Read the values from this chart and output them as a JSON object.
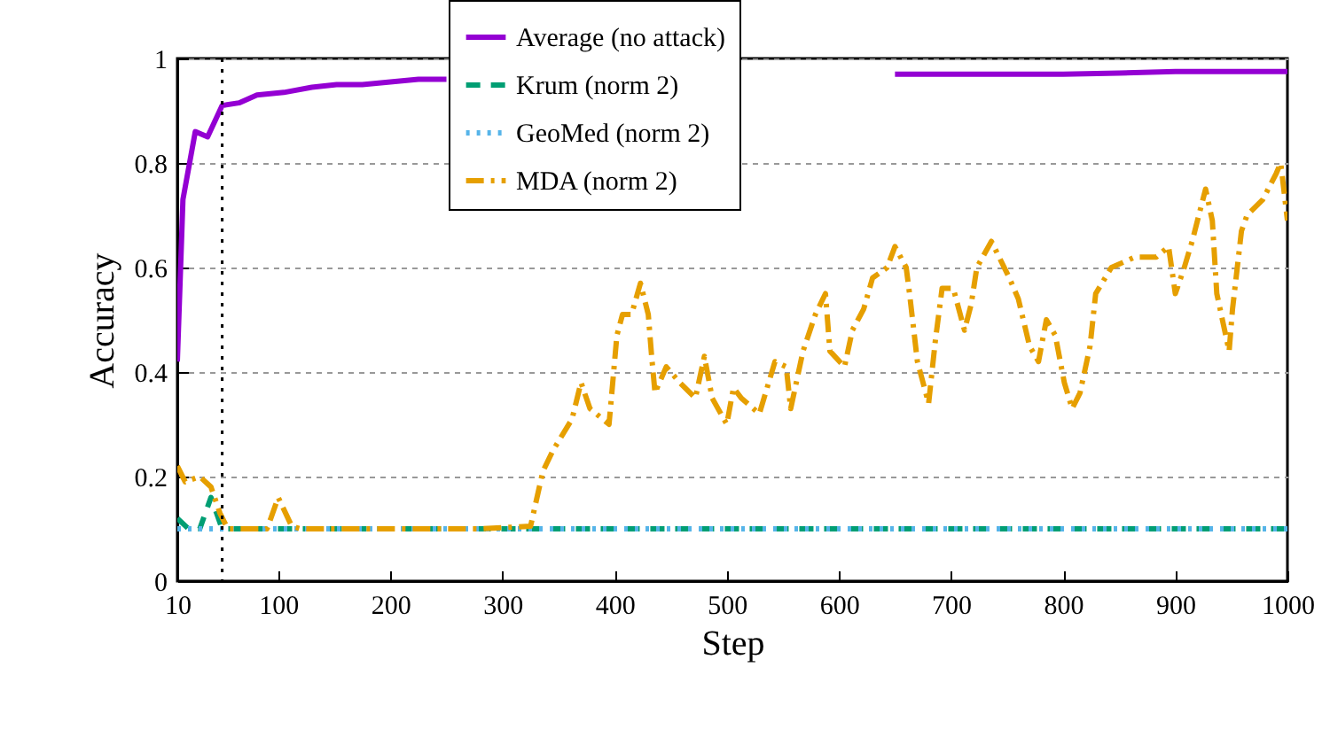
{
  "chart_data": {
    "type": "line",
    "xlabel": "Step",
    "ylabel": "Accuracy",
    "xlim": [
      10,
      1000
    ],
    "xticks": [
      10,
      100,
      200,
      300,
      400,
      500,
      600,
      700,
      800,
      900,
      1000
    ],
    "ylim": [
      0,
      1
    ],
    "yticks": [
      0,
      0.2,
      0.4,
      0.6,
      0.8,
      1
    ],
    "grid": "y",
    "legend": "top",
    "marker": "none",
    "ref_lines": [
      {
        "axis": "x",
        "value": 50,
        "color": "#000000",
        "line_style": "dotted"
      }
    ],
    "series": [
      {
        "name": "Average (no attack)",
        "color": "#9400d3",
        "line_style": "solid",
        "x": [
          10,
          15,
          26,
          37,
          50,
          65,
          81,
          105,
          130,
          152,
          175,
          200,
          225,
          250,
          400,
          650,
          700,
          750,
          800,
          850,
          900,
          950,
          1000
        ],
        "values": [
          0.42,
          0.73,
          0.86,
          0.85,
          0.91,
          0.915,
          0.93,
          0.935,
          0.945,
          0.95,
          0.95,
          0.955,
          0.96,
          0.96,
          null,
          0.97,
          0.97,
          0.97,
          0.97,
          0.972,
          0.975,
          0.975,
          0.975
        ]
      },
      {
        "name": "Krum (norm 2)",
        "color": "#009e73",
        "line_style": "dashed",
        "x": [
          10,
          20,
          30,
          40,
          50,
          1000
        ],
        "values": [
          0.12,
          0.1,
          0.1,
          0.16,
          0.1,
          0.1
        ]
      },
      {
        "name": "GeoMed (norm 2)",
        "color": "#56b4e9",
        "line_style": "dotted",
        "x": [
          10,
          1000
        ],
        "values": [
          0.1,
          0.1
        ]
      },
      {
        "name": "MDA (norm 2)",
        "color": "#e69f00",
        "line_style": "dashdot",
        "x": [
          10,
          17,
          30,
          40,
          48,
          55,
          70,
          90,
          100,
          112,
          120,
          200,
          280,
          325,
          336,
          345,
          362,
          370,
          378,
          395,
          402,
          407,
          415,
          423,
          430,
          433,
          436,
          446,
          458,
          472,
          480,
          487,
          500,
          506,
          513,
          529,
          543,
          553,
          557,
          568,
          579,
          588,
          592,
          605,
          612,
          622,
          630,
          643,
          650,
          660,
          663,
          670,
          680,
          686,
          692,
          702,
          712,
          718,
          723,
          736,
          752,
          760,
          770,
          778,
          785,
          793,
          801,
          808,
          815,
          824,
          829,
          843,
          864,
          883,
          894,
          900,
          908,
          915,
          927,
          933,
          937,
          948,
          951,
          959,
          964,
          978,
          990,
          994,
          1000
        ],
        "values": [
          0.22,
          0.19,
          0.2,
          0.18,
          0.13,
          0.1,
          0.1,
          0.1,
          0.16,
          0.105,
          0.1,
          0.1,
          0.1,
          0.105,
          0.21,
          0.25,
          0.31,
          0.38,
          0.33,
          0.3,
          0.47,
          0.51,
          0.51,
          0.57,
          0.51,
          0.43,
          0.36,
          0.41,
          0.38,
          0.35,
          0.43,
          0.35,
          0.3,
          0.37,
          0.35,
          0.32,
          0.42,
          0.41,
          0.33,
          0.44,
          0.51,
          0.55,
          0.44,
          0.41,
          0.48,
          0.52,
          0.58,
          0.6,
          0.64,
          0.6,
          0.55,
          0.42,
          0.34,
          0.46,
          0.56,
          0.56,
          0.48,
          0.53,
          0.6,
          0.65,
          0.58,
          0.54,
          0.45,
          0.42,
          0.5,
          0.47,
          0.38,
          0.33,
          0.36,
          0.45,
          0.55,
          0.6,
          0.62,
          0.62,
          0.64,
          0.55,
          0.6,
          0.65,
          0.75,
          0.69,
          0.55,
          0.44,
          0.52,
          0.67,
          0.7,
          0.73,
          0.78,
          0.8,
          0.69
        ]
      }
    ]
  }
}
